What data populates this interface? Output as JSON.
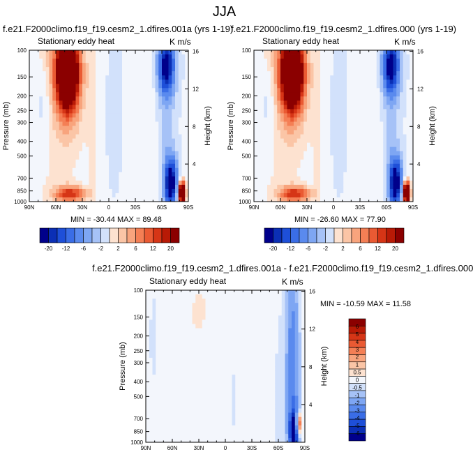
{
  "page_title": "JJA",
  "colorbar_horizontal_labels": [
    "-20",
    "-12",
    "-6",
    "-2",
    "2",
    "6",
    "12",
    "20"
  ],
  "colorbar_vertical_labels": [
    "6",
    "5",
    "4",
    "3",
    "2",
    "1",
    "0.5",
    "0",
    "-0.5",
    "-1",
    "-2",
    "-3",
    "-4",
    "-5",
    "-6"
  ],
  "palette": {
    "blue": [
      "#00008b",
      "#0b2fb5",
      "#1e4fd8",
      "#3a6de6",
      "#5a8aee",
      "#7ea6f3",
      "#a6c2f7",
      "#d2e1fb"
    ],
    "neutral": "#f3f6fc",
    "red": [
      "#fde2d0",
      "#fbc5a6",
      "#f8a47d",
      "#f47f55",
      "#ea5a33",
      "#d63516",
      "#b81a06",
      "#8b0000"
    ]
  },
  "chart_data": [
    {
      "type": "heatmap",
      "title": "f.e21.F2000climo.f19_f19.cesm2_1.dfires.001a (yrs 1-19)",
      "variable": "Stationary eddy heat",
      "units": "K m/s",
      "min_max_text": "MIN = -30.44   MAX = 89.48",
      "min": -30.44,
      "max": 89.48,
      "x_ticks": [
        "90N",
        "60N",
        "30N",
        "0",
        "30S",
        "60S",
        "90S"
      ],
      "y_ticks_left": [
        "100",
        "150",
        "200",
        "250",
        "300",
        "400",
        "500",
        "700",
        "850",
        "1000"
      ],
      "y_ticks_right": [
        "16",
        "12",
        "8",
        "4"
      ],
      "ylabel": "Pressure (mb)",
      "ylabel_right": "Height (km)",
      "colorbar": "horizontal"
    },
    {
      "type": "heatmap",
      "title": "f.e21.F2000climo.f19_f19.cesm2_1.dfires.000 (yrs 1-19)",
      "variable": "Stationary eddy heat",
      "units": "K m/s",
      "min_max_text": "MIN = -26.60   MAX = 77.90",
      "min": -26.6,
      "max": 77.9,
      "x_ticks": [
        "90N",
        "60N",
        "30N",
        "0",
        "30S",
        "60S",
        "90S"
      ],
      "y_ticks_left": [
        "100",
        "150",
        "200",
        "250",
        "300",
        "400",
        "500",
        "700",
        "850",
        "1000"
      ],
      "y_ticks_right": [
        "16",
        "12",
        "8",
        "4"
      ],
      "ylabel": "Pressure (mb)",
      "ylabel_right": "Height (km)",
      "colorbar": "horizontal"
    },
    {
      "type": "heatmap",
      "title": "f.e21.F2000climo.f19_f19.cesm2_1.dfires.001a - f.e21.F2000climo.f19_f19.cesm2_1.dfires.000",
      "variable": "Stationary eddy heat",
      "units": "K m/s",
      "min_max_text": "MIN = -10.59   MAX = 11.58",
      "min": -10.59,
      "max": 11.58,
      "x_ticks": [
        "90N",
        "60N",
        "30N",
        "0",
        "30S",
        "60S",
        "90S"
      ],
      "y_ticks_left": [
        "100",
        "150",
        "200",
        "250",
        "300",
        "400",
        "500",
        "700",
        "850",
        "1000"
      ],
      "y_ticks_right": [
        "16",
        "12",
        "8",
        "4"
      ],
      "ylabel": "Pressure (mb)",
      "ylabel_right": "Height (km)",
      "colorbar": "vertical"
    }
  ]
}
